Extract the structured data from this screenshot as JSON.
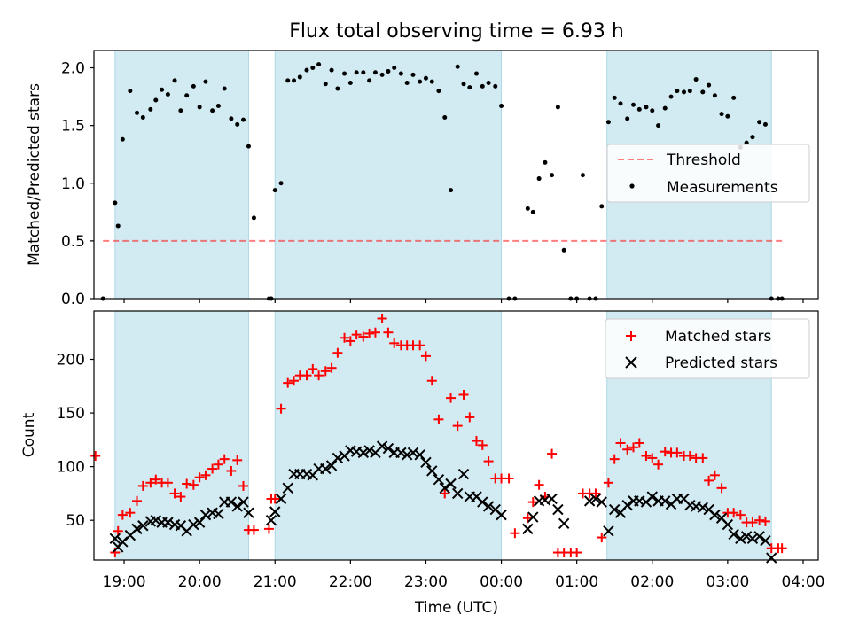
{
  "title": "Flux total observing time = 6.93 h",
  "colors": {
    "shade": "#add8e6",
    "threshold": "#ff0000",
    "matched": "#ff0000",
    "predicted": "#000000",
    "measurement": "#000000"
  },
  "chart_data": [
    {
      "type": "scatter",
      "ylabel": "Matched/Predicted stars",
      "xlim": [
        18.6,
        4.2
      ],
      "ylim": [
        0,
        2.15
      ],
      "yticks": [
        "0.0",
        "0.5",
        "1.0",
        "1.5",
        "2.0"
      ],
      "yticks_values": [
        0,
        0.5,
        1.0,
        1.5,
        2.0
      ],
      "shaded_intervals": [
        [
          18.88,
          20.65
        ],
        [
          21.0,
          24.0
        ],
        [
          25.4,
          27.58
        ]
      ],
      "legend_position": "right",
      "threshold": {
        "name": "Threshold",
        "x_start": 18.72,
        "x_end": 27.72,
        "y": 0.5
      },
      "series": [
        {
          "name": "Measurements",
          "x": [
            18.72,
            18.88,
            18.92,
            18.98,
            19.08,
            19.17,
            19.25,
            19.35,
            19.42,
            19.5,
            19.58,
            19.67,
            19.75,
            19.83,
            19.92,
            20.0,
            20.08,
            20.17,
            20.25,
            20.33,
            20.42,
            20.5,
            20.58,
            20.65,
            20.72,
            20.92,
            20.95,
            21.0,
            21.08,
            21.17,
            21.25,
            21.33,
            21.42,
            21.5,
            21.58,
            21.67,
            21.75,
            21.83,
            21.92,
            22.0,
            22.08,
            22.17,
            22.25,
            22.33,
            22.42,
            22.5,
            22.58,
            22.67,
            22.75,
            22.83,
            22.92,
            23.0,
            23.08,
            23.17,
            23.25,
            23.33,
            23.42,
            23.5,
            23.58,
            23.67,
            23.75,
            23.83,
            23.92,
            24.0,
            24.1,
            24.18,
            24.35,
            24.42,
            24.5,
            24.58,
            24.67,
            24.75,
            24.83,
            24.92,
            25.0,
            25.08,
            25.17,
            25.25,
            25.33,
            25.42,
            25.5,
            25.58,
            25.67,
            25.75,
            25.83,
            25.92,
            26.0,
            26.08,
            26.17,
            26.25,
            26.33,
            26.42,
            26.5,
            26.58,
            26.67,
            26.75,
            26.83,
            26.92,
            27.0,
            27.08,
            27.17,
            27.25,
            27.33,
            27.42,
            27.5,
            27.58,
            27.67,
            27.72
          ],
          "y": [
            0.0,
            0.83,
            0.63,
            1.38,
            1.8,
            1.61,
            1.57,
            1.64,
            1.72,
            1.81,
            1.77,
            1.89,
            1.63,
            1.76,
            1.84,
            1.66,
            1.88,
            1.63,
            1.67,
            1.82,
            1.56,
            1.51,
            1.55,
            1.32,
            0.7,
            0.0,
            0.0,
            0.94,
            1.0,
            1.89,
            1.89,
            1.92,
            1.98,
            2.0,
            2.03,
            1.86,
            1.98,
            1.82,
            1.95,
            1.87,
            1.96,
            1.96,
            1.89,
            1.96,
            1.94,
            1.97,
            2.0,
            1.95,
            1.87,
            1.94,
            1.88,
            1.91,
            1.88,
            1.8,
            1.57,
            0.94,
            2.01,
            1.86,
            1.83,
            1.95,
            1.84,
            1.87,
            1.84,
            1.67,
            0.0,
            0.0,
            0.78,
            0.75,
            1.04,
            1.18,
            1.07,
            1.66,
            0.42,
            0.0,
            0.0,
            1.07,
            0.0,
            0.0,
            0.8,
            1.53,
            1.74,
            1.69,
            1.56,
            1.68,
            1.64,
            1.66,
            1.63,
            1.5,
            1.65,
            1.75,
            1.8,
            1.79,
            1.8,
            1.9,
            1.79,
            1.85,
            1.76,
            1.6,
            1.58,
            1.74,
            1.31,
            1.35,
            1.4,
            1.53,
            1.51,
            0.0,
            0.0,
            0.0
          ]
        }
      ]
    },
    {
      "type": "scatter",
      "xlabel": "Time (UTC)",
      "ylabel": "Count",
      "xlim": [
        18.6,
        4.2
      ],
      "xticks": [
        "19:00",
        "20:00",
        "21:00",
        "22:00",
        "23:00",
        "00:00",
        "01:00",
        "02:00",
        "03:00",
        "04:00"
      ],
      "xticks_values": [
        19,
        20,
        21,
        22,
        23,
        24,
        25,
        26,
        27,
        28
      ],
      "ylim": [
        13,
        245
      ],
      "yticks": [
        "50",
        "100",
        "150",
        "200"
      ],
      "yticks_values": [
        50,
        100,
        150,
        200
      ],
      "shaded_intervals": [
        [
          18.88,
          20.65
        ],
        [
          21.0,
          24.0
        ],
        [
          25.4,
          27.58
        ]
      ],
      "legend_position": "upper right",
      "series": [
        {
          "name": "Matched stars",
          "marker": "plus",
          "x": [
            18.62,
            18.88,
            18.92,
            18.98,
            19.08,
            19.17,
            19.25,
            19.35,
            19.42,
            19.5,
            19.58,
            19.67,
            19.75,
            19.83,
            19.92,
            20.0,
            20.08,
            20.17,
            20.25,
            20.33,
            20.42,
            20.5,
            20.58,
            20.65,
            20.72,
            20.92,
            20.95,
            21.0,
            21.08,
            21.17,
            21.25,
            21.33,
            21.42,
            21.5,
            21.58,
            21.67,
            21.75,
            21.83,
            21.92,
            22.0,
            22.08,
            22.17,
            22.25,
            22.33,
            22.42,
            22.5,
            22.58,
            22.67,
            22.75,
            22.83,
            22.92,
            23.0,
            23.08,
            23.17,
            23.25,
            23.33,
            23.42,
            23.5,
            23.58,
            23.67,
            23.75,
            23.83,
            23.92,
            24.0,
            24.1,
            24.18,
            24.35,
            24.42,
            24.5,
            24.58,
            24.67,
            24.75,
            24.83,
            24.92,
            25.0,
            25.08,
            25.17,
            25.25,
            25.33,
            25.42,
            25.5,
            25.58,
            25.67,
            25.75,
            25.83,
            25.92,
            26.0,
            26.08,
            26.17,
            26.25,
            26.33,
            26.42,
            26.5,
            26.58,
            26.67,
            26.75,
            26.83,
            26.92,
            27.0,
            27.08,
            27.17,
            27.25,
            27.33,
            27.42,
            27.5,
            27.58,
            27.67,
            27.72
          ],
          "y": [
            110,
            20,
            40,
            55,
            57,
            68,
            82,
            85,
            88,
            85,
            85,
            75,
            72,
            84,
            83,
            90,
            92,
            98,
            102,
            107,
            96,
            106,
            82,
            41,
            41,
            42,
            70,
            70,
            154,
            178,
            180,
            185,
            185,
            191,
            185,
            189,
            192,
            206,
            220,
            217,
            223,
            221,
            224,
            225,
            238,
            225,
            215,
            213,
            213,
            213,
            213,
            203,
            180,
            144,
            75,
            164,
            138,
            167,
            146,
            124,
            120,
            105,
            89,
            89,
            89,
            38,
            52,
            67,
            83,
            72,
            112,
            20,
            20,
            20,
            20,
            75,
            75,
            75,
            34,
            85,
            107,
            122,
            116,
            118,
            122,
            110,
            108,
            102,
            114,
            113,
            113,
            110,
            110,
            108,
            108,
            87,
            92,
            80,
            57,
            57,
            55,
            48,
            48,
            50,
            49,
            24,
            24,
            24
          ]
        },
        {
          "name": "Predicted stars",
          "marker": "x",
          "x": [
            18.88,
            18.92,
            18.98,
            19.08,
            19.17,
            19.25,
            19.35,
            19.42,
            19.5,
            19.58,
            19.67,
            19.75,
            19.83,
            19.92,
            20.0,
            20.08,
            20.17,
            20.25,
            20.33,
            20.42,
            20.5,
            20.58,
            20.65,
            20.95,
            21.0,
            21.08,
            21.17,
            21.25,
            21.33,
            21.42,
            21.5,
            21.58,
            21.67,
            21.75,
            21.83,
            21.92,
            22.0,
            22.08,
            22.17,
            22.25,
            22.33,
            22.42,
            22.5,
            22.58,
            22.67,
            22.75,
            22.83,
            22.92,
            23.0,
            23.08,
            23.17,
            23.25,
            23.33,
            23.42,
            23.5,
            23.58,
            23.67,
            23.75,
            23.83,
            23.92,
            24.0,
            24.35,
            24.42,
            24.5,
            24.58,
            24.67,
            24.75,
            24.83,
            25.17,
            25.25,
            25.33,
            25.42,
            25.5,
            25.58,
            25.67,
            25.75,
            25.83,
            25.92,
            26.0,
            26.08,
            26.17,
            26.25,
            26.33,
            26.42,
            26.5,
            26.58,
            26.67,
            26.75,
            26.83,
            26.92,
            27.0,
            27.08,
            27.17,
            27.25,
            27.33,
            27.42,
            27.5,
            27.58
          ],
          "y": [
            33,
            25,
            30,
            36,
            42,
            45,
            49,
            50,
            48,
            48,
            46,
            45,
            40,
            46,
            48,
            55,
            57,
            56,
            67,
            67,
            63,
            67,
            57,
            50,
            58,
            70,
            80,
            93,
            93,
            93,
            92,
            98,
            98,
            101,
            108,
            110,
            115,
            114,
            113,
            115,
            113,
            119,
            117,
            113,
            113,
            111,
            113,
            111,
            104,
            96,
            88,
            80,
            84,
            75,
            93,
            72,
            72,
            67,
            63,
            60,
            55,
            42,
            53,
            68,
            69,
            70,
            60,
            47,
            68,
            70,
            67,
            40,
            60,
            57,
            64,
            68,
            68,
            67,
            72,
            68,
            68,
            65,
            70,
            70,
            64,
            63,
            62,
            60,
            55,
            52,
            46,
            37,
            33,
            35,
            33,
            35,
            31,
            15
          ]
        }
      ]
    }
  ]
}
